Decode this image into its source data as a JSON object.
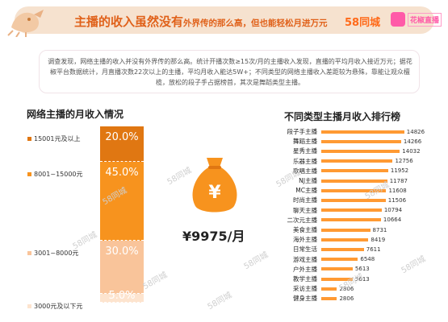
{
  "header": {
    "title_main": "主播的收入虽然没有",
    "title_rest": "外界传的那么高，但也能轻松月进万元",
    "logo_58": "58同城",
    "logo_live": "花椒直播"
  },
  "description": "调查发现，网络主播的收入并没有外界传的那么高。统计开播次数≥15次/月的主播收入发现，直播的平均月收入接近万元；据花椒平台数据统计，月直播次数22次以上的主播，平均月收入能达5W+；不同类型的网络主播收入差距较为悬殊，靠能让观众檀榄，放松的段子手占据榜首，其次是舞蹈类型主播。",
  "watermark": "58同城",
  "colors": {
    "accent": "#e0611a",
    "bar": "#ff9a33",
    "seg1": "#e07712",
    "seg2": "#f7931e",
    "seg3": "#f9c49a",
    "seg4": "#fde4cf"
  },
  "icons": {
    "moneybag": "money-bag-icon",
    "logo": "logo-icon"
  },
  "income": {
    "value": "¥9975/月"
  },
  "chart_data": [
    {
      "type": "bar",
      "stacked": true,
      "title": "网络主播的月收入情况",
      "series": [
        {
          "name": "15001元及以上",
          "value": 20.0,
          "label": "20.0%"
        },
        {
          "name": "8001~15000元",
          "value": 45.0,
          "label": "45.0%"
        },
        {
          "name": "3001~8000元",
          "value": 30.0,
          "label": "30.0%"
        },
        {
          "name": "3000元及以下元",
          "value": 5.0,
          "label": "5.0%"
        }
      ]
    },
    {
      "type": "bar",
      "orientation": "horizontal",
      "title": "不同类型主播月收入排行榜",
      "xlim": [
        0,
        15000
      ],
      "categories": [
        "段子手主播",
        "舞蹈主播",
        "星秀主播",
        "乐器主播",
        "歌唱主播",
        "NJ主播",
        "MC主播",
        "时尚主播",
        "聊天主播",
        "二次元主播",
        "美食主播",
        "海外主播",
        "日常生活",
        "游戏主播",
        "户外主播",
        "教学主播",
        "采访主播",
        "健身主播"
      ],
      "values": [
        14826,
        14266,
        14032,
        12756,
        11952,
        11787,
        11608,
        11506,
        10794,
        10664,
        8731,
        8419,
        7611,
        6548,
        5613,
        5613,
        2806,
        2806
      ]
    }
  ]
}
